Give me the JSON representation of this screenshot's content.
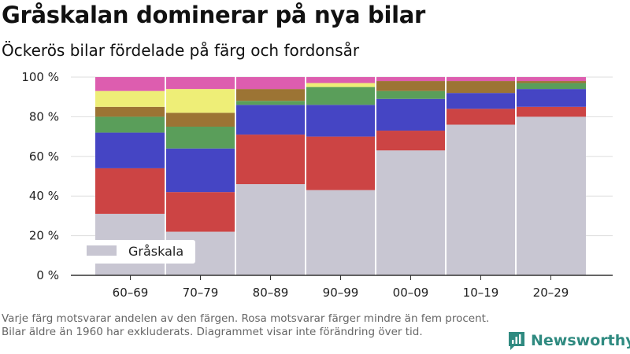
{
  "header": {
    "title": "Gråskalan dominerar på nya bilar",
    "subtitle": "Öckerös bilar fördelade på färg och fordonsår"
  },
  "footnote": "Varje färg motsvarar andelen av den färgen. Rosa motsvarar färger mindre än fem procent. Bilar äldre än 1960 har exkluderats. Diagrammet visar inte förändring över tid.",
  "brand": {
    "name": "Newsworthy",
    "icon": "newsworthy-logo-icon",
    "color": "#2f8a80"
  },
  "chart_data": {
    "type": "bar",
    "stacked": true,
    "categories": [
      "60–69",
      "70–79",
      "80–89",
      "90–99",
      "00–09",
      "10–19",
      "20–29"
    ],
    "yticks": [
      "0 %",
      "20 %",
      "40 %",
      "60 %",
      "80 %",
      "100 %"
    ],
    "ylim": [
      0,
      100
    ],
    "legend": {
      "position": "bottom-left",
      "entries": [
        "Gråskala"
      ]
    },
    "series": [
      {
        "name": "Gråskala",
        "color": "#c8c6d2",
        "values": [
          31,
          22,
          46,
          43,
          63,
          76,
          80
        ]
      },
      {
        "color": "#cc4444",
        "values": [
          23,
          20,
          25,
          27,
          10,
          8,
          5
        ]
      },
      {
        "color": "#4545c4",
        "values": [
          18,
          22,
          15,
          16,
          16,
          8,
          9
        ]
      },
      {
        "color": "#5a9e5a",
        "values": [
          8,
          11,
          2,
          9,
          4,
          0,
          3
        ]
      },
      {
        "color": "#9c7434",
        "values": [
          5,
          7,
          6,
          0,
          5,
          6,
          1
        ]
      },
      {
        "color": "#eeee77",
        "values": [
          8,
          12,
          0,
          2,
          0,
          0,
          0
        ]
      },
      {
        "color": "#dd5daf",
        "values": [
          7,
          6,
          6,
          3,
          2,
          2,
          2
        ]
      }
    ]
  }
}
